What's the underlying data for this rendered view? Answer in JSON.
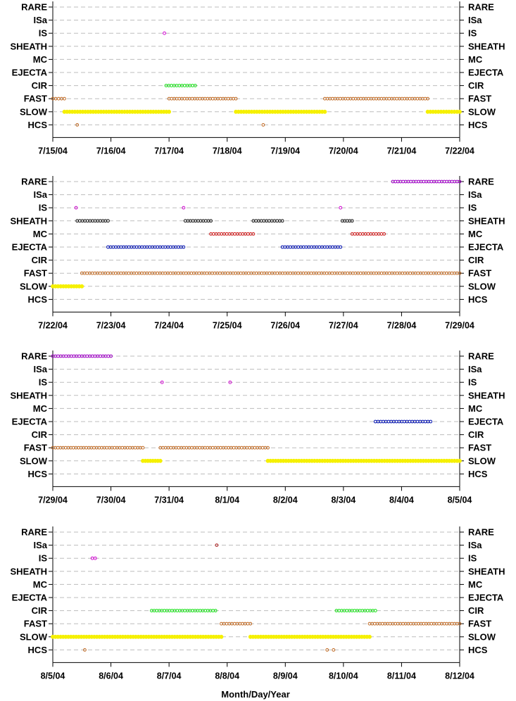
{
  "chart_data": {
    "type": "scatter",
    "xlabel": "Month/Day/Year",
    "categories": [
      "RARE",
      "ISa",
      "IS",
      "SHEATH",
      "MC",
      "EJECTA",
      "CIR",
      "FAST",
      "SLOW",
      "HCS"
    ],
    "grid": true,
    "colors": {
      "RARE": "#a000c8",
      "ISa": "#b02020",
      "IS": "#d000d0",
      "SHEATH": "#101010",
      "MC": "#d01818",
      "EJECTA": "#0010b0",
      "CIR": "#10e010",
      "FAST": "#c06820",
      "SLOW": "#f5f000",
      "HCS": "#c06820"
    },
    "panels": [
      {
        "xlim": [
          "7/15/04",
          "7/22/04"
        ],
        "start_day": 0,
        "ticks": [
          "7/15/04",
          "7/16/04",
          "7/17/04",
          "7/18/04",
          "7/19/04",
          "7/20/04",
          "7/21/04",
          "7/22/04"
        ],
        "intervals": [
          {
            "category": "FAST",
            "from": 0.0,
            "to": 0.2
          },
          {
            "category": "SLOW",
            "from": 0.2,
            "to": 2.0
          },
          {
            "category": "HCS",
            "from": 0.42,
            "to": 0.42
          },
          {
            "category": "IS",
            "from": 1.92,
            "to": 1.92
          },
          {
            "category": "CIR",
            "from": 1.95,
            "to": 2.45
          },
          {
            "category": "FAST",
            "from": 2.0,
            "to": 3.15
          },
          {
            "category": "SLOW",
            "from": 3.15,
            "to": 4.68
          },
          {
            "category": "HCS",
            "from": 3.62,
            "to": 3.62
          },
          {
            "category": "FAST",
            "from": 4.68,
            "to": 6.45
          },
          {
            "category": "SLOW",
            "from": 6.45,
            "to": 7.0
          }
        ]
      },
      {
        "xlim": [
          "7/22/04",
          "7/29/04"
        ],
        "start_day": 7,
        "ticks": [
          "7/22/04",
          "7/23/04",
          "7/24/04",
          "7/25/04",
          "7/26/04",
          "7/27/04",
          "7/28/04",
          "7/29/04"
        ],
        "intervals": [
          {
            "category": "SLOW",
            "from": 0.0,
            "to": 0.5
          },
          {
            "category": "FAST",
            "from": 0.5,
            "to": 7.0
          },
          {
            "category": "IS",
            "from": 0.4,
            "to": 0.4
          },
          {
            "category": "SHEATH",
            "from": 0.42,
            "to": 0.95
          },
          {
            "category": "EJECTA",
            "from": 0.95,
            "to": 2.25
          },
          {
            "category": "IS",
            "from": 2.25,
            "to": 2.25
          },
          {
            "category": "SHEATH",
            "from": 2.28,
            "to": 2.72
          },
          {
            "category": "MC",
            "from": 2.72,
            "to": 3.45
          },
          {
            "category": "SHEATH",
            "from": 3.45,
            "to": 3.95
          },
          {
            "category": "EJECTA",
            "from": 3.95,
            "to": 4.95
          },
          {
            "category": "IS",
            "from": 4.95,
            "to": 4.95
          },
          {
            "category": "SHEATH",
            "from": 4.98,
            "to": 5.15
          },
          {
            "category": "MC",
            "from": 5.15,
            "to": 5.7
          },
          {
            "category": "RARE",
            "from": 5.85,
            "to": 7.0
          }
        ]
      },
      {
        "xlim": [
          "7/29/04",
          "8/5/04"
        ],
        "start_day": 14,
        "ticks": [
          "7/29/04",
          "7/30/04",
          "7/31/04",
          "8/1/04",
          "8/2/04",
          "8/3/04",
          "8/4/04",
          "8/5/04"
        ],
        "intervals": [
          {
            "category": "RARE",
            "from": 0.0,
            "to": 1.0
          },
          {
            "category": "FAST",
            "from": 0.0,
            "to": 1.55
          },
          {
            "category": "SLOW",
            "from": 1.55,
            "to": 1.85
          },
          {
            "category": "IS",
            "from": 1.88,
            "to": 1.88
          },
          {
            "category": "FAST",
            "from": 1.85,
            "to": 3.7
          },
          {
            "category": "IS",
            "from": 3.05,
            "to": 3.05
          },
          {
            "category": "SLOW",
            "from": 3.7,
            "to": 7.0
          },
          {
            "category": "EJECTA",
            "from": 5.55,
            "to": 6.5
          }
        ]
      },
      {
        "xlim": [
          "8/5/04",
          "8/12/04"
        ],
        "start_day": 21,
        "ticks": [
          "8/5/04",
          "8/6/04",
          "8/7/04",
          "8/8/04",
          "8/9/04",
          "8/10/04",
          "8/11/04",
          "8/12/04"
        ],
        "intervals": [
          {
            "category": "SLOW",
            "from": 0.0,
            "to": 2.9
          },
          {
            "category": "HCS",
            "from": 0.55,
            "to": 0.55
          },
          {
            "category": "IS",
            "from": 0.68,
            "to": 0.73
          },
          {
            "category": "CIR",
            "from": 1.7,
            "to": 2.8
          },
          {
            "category": "ISa",
            "from": 2.82,
            "to": 2.82
          },
          {
            "category": "FAST",
            "from": 2.9,
            "to": 3.4
          },
          {
            "category": "SLOW",
            "from": 3.4,
            "to": 5.45
          },
          {
            "category": "HCS",
            "from": 4.72,
            "to": 4.72
          },
          {
            "category": "HCS",
            "from": 4.83,
            "to": 4.83
          },
          {
            "category": "CIR",
            "from": 4.88,
            "to": 5.55
          },
          {
            "category": "FAST",
            "from": 5.45,
            "to": 7.0
          }
        ]
      }
    ]
  }
}
